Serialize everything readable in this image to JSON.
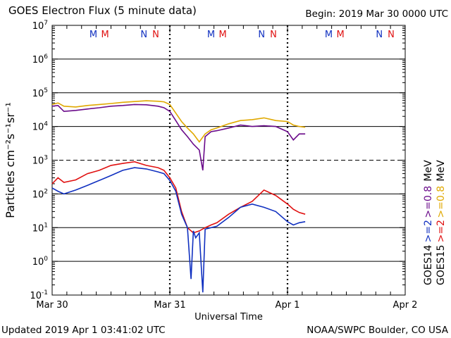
{
  "header": {
    "title": "GOES Electron Flux (5 minute data)",
    "begin": "Begin: 2019 Mar 30 0000 UTC"
  },
  "footer": {
    "updated": "Updated 2019 Apr  1 03:41:02 UTC",
    "credit": "NOAA/SWPC Boulder, CO USA"
  },
  "colors": {
    "goes14_2mev": "#1030c0",
    "goes15_2mev": "#e01010",
    "goes14_08mev": "#6a0a8a",
    "goes15_08mev": "#e0a800"
  },
  "legend": {
    "right_labels": [
      {
        "text": "GOES15",
        "color": "#000000"
      },
      {
        "text": "GOES14",
        "color": "#000000"
      },
      {
        "text": ">=2",
        "color": "#e01010"
      },
      {
        "text": ">=2",
        "color": "#1030c0"
      },
      {
        "text": ">=0.8",
        "color": "#e0a800"
      },
      {
        "text": ">=0.8",
        "color": "#6a0a8a"
      },
      {
        "text": "MeV",
        "color": "#000000"
      },
      {
        "text": "MeV",
        "color": "#000000"
      }
    ]
  },
  "markers": [
    {
      "text": "M",
      "color": "#1030c0",
      "x": 0.35
    },
    {
      "text": "M",
      "color": "#e01010",
      "x": 0.45
    },
    {
      "text": "N",
      "color": "#1030c0",
      "x": 0.78
    },
    {
      "text": "N",
      "color": "#e01010",
      "x": 0.88
    },
    {
      "text": "M",
      "color": "#1030c0",
      "x": 1.35
    },
    {
      "text": "M",
      "color": "#e01010",
      "x": 1.45
    },
    {
      "text": "N",
      "color": "#1030c0",
      "x": 1.78
    },
    {
      "text": "N",
      "color": "#e01010",
      "x": 1.88
    },
    {
      "text": "M",
      "color": "#1030c0",
      "x": 2.35
    },
    {
      "text": "M",
      "color": "#e01010",
      "x": 2.45
    },
    {
      "text": "N",
      "color": "#1030c0",
      "x": 2.78
    },
    {
      "text": "N",
      "color": "#e01010",
      "x": 2.88
    }
  ],
  "chart_data": {
    "type": "line",
    "title": "GOES Electron Flux (5 minute data)",
    "xlabel": "Universal Time",
    "ylabel": "Particles cm⁻²s⁻¹sr⁻¹",
    "y_scale": "log",
    "ylim_exp": [
      -1,
      7
    ],
    "y_tick_exps": [
      -1,
      0,
      1,
      2,
      3,
      4,
      5,
      6,
      7
    ],
    "dashed_threshold_exp": 3,
    "x_ticks": [
      {
        "label": "Mar 30",
        "x": 0
      },
      {
        "label": "Mar 31",
        "x": 1
      },
      {
        "label": "Apr 1",
        "x": 2
      },
      {
        "label": "Apr 2",
        "x": 3
      }
    ],
    "xlim_days": [
      0,
      3
    ],
    "series": [
      {
        "name": "GOES15 >=0.8 MeV",
        "color": "#e0a800",
        "x": [
          0,
          0.05,
          0.1,
          0.2,
          0.3,
          0.4,
          0.5,
          0.6,
          0.7,
          0.8,
          0.9,
          0.95,
          1.0,
          1.05,
          1.1,
          1.15,
          1.2,
          1.25,
          1.3,
          1.35,
          1.4,
          1.5,
          1.6,
          1.7,
          1.8,
          1.9,
          2.0,
          2.05,
          2.1,
          2.15
        ],
        "y": [
          45000,
          50000,
          40000,
          38000,
          42000,
          45000,
          48000,
          52000,
          55000,
          58000,
          56000,
          54000,
          45000,
          25000,
          14000,
          9000,
          6000,
          3500,
          6000,
          8000,
          9000,
          12000,
          15000,
          16000,
          18000,
          15000,
          14000,
          11000,
          10000,
          9500
        ]
      },
      {
        "name": "GOES14 >=0.8 MeV",
        "color": "#6a0a8a",
        "x": [
          0,
          0.05,
          0.1,
          0.2,
          0.3,
          0.4,
          0.5,
          0.6,
          0.7,
          0.8,
          0.9,
          0.95,
          1.0,
          1.05,
          1.1,
          1.15,
          1.2,
          1.25,
          1.28,
          1.3,
          1.35,
          1.4,
          1.5,
          1.6,
          1.7,
          1.8,
          1.9,
          2.0,
          2.05,
          2.1,
          2.15
        ],
        "y": [
          40000,
          42000,
          28000,
          30000,
          33000,
          36000,
          40000,
          42000,
          45000,
          44000,
          40000,
          36000,
          28000,
          15000,
          8000,
          5000,
          3000,
          2000,
          500,
          5000,
          7000,
          7500,
          9000,
          11000,
          10000,
          10500,
          10000,
          7000,
          4000,
          6000,
          6000
        ]
      },
      {
        "name": "GOES15 >=2 MeV",
        "color": "#e01010",
        "x": [
          0,
          0.05,
          0.1,
          0.2,
          0.3,
          0.4,
          0.5,
          0.6,
          0.7,
          0.8,
          0.9,
          0.95,
          1.0,
          1.05,
          1.1,
          1.15,
          1.2,
          1.25,
          1.3,
          1.35,
          1.4,
          1.5,
          1.6,
          1.7,
          1.8,
          1.9,
          2.0,
          2.05,
          2.1,
          2.15
        ],
        "y": [
          200,
          300,
          220,
          260,
          400,
          500,
          700,
          800,
          900,
          700,
          600,
          500,
          300,
          150,
          30,
          10,
          7,
          8,
          10,
          12,
          14,
          25,
          40,
          60,
          130,
          90,
          50,
          35,
          28,
          25
        ]
      },
      {
        "name": "GOES14 >=2 MeV",
        "color": "#1030c0",
        "x": [
          0,
          0.05,
          0.1,
          0.2,
          0.3,
          0.4,
          0.5,
          0.6,
          0.7,
          0.8,
          0.9,
          0.95,
          1.0,
          1.05,
          1.1,
          1.15,
          1.18,
          1.2,
          1.22,
          1.25,
          1.28,
          1.3,
          1.35,
          1.4,
          1.5,
          1.6,
          1.7,
          1.8,
          1.9,
          2.0,
          2.05,
          2.1,
          2.15
        ],
        "y": [
          150,
          120,
          100,
          130,
          180,
          250,
          350,
          500,
          600,
          550,
          450,
          400,
          250,
          120,
          25,
          10,
          0.3,
          8,
          5,
          7,
          0.12,
          9,
          10,
          11,
          20,
          40,
          50,
          40,
          30,
          15,
          12,
          14,
          15
        ]
      }
    ]
  }
}
